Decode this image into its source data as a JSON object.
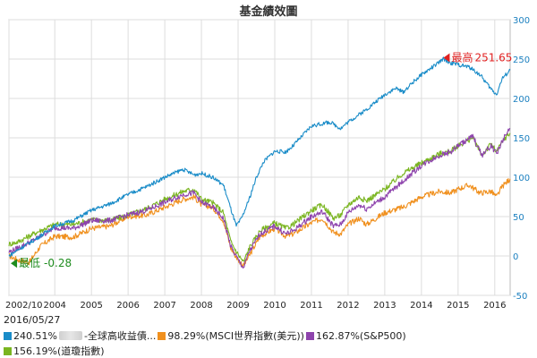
{
  "chart_data": {
    "type": "line",
    "title": "基金績效圖",
    "date": "2016/05/27",
    "x_ticks": [
      "2002/10",
      "2004",
      "2005",
      "2006",
      "2007",
      "2008",
      "2009",
      "2010",
      "2011",
      "2012",
      "2013",
      "2014",
      "2015",
      "2016"
    ],
    "x_tick_positions": [
      2002.75,
      2004,
      2005,
      2006,
      2007,
      2008,
      2009,
      2010,
      2011,
      2012,
      2013,
      2014,
      2015,
      2016
    ],
    "xlim": [
      2002.75,
      2016.42
    ],
    "y_ticks": [
      -50,
      0,
      50,
      100,
      150,
      200,
      250,
      300
    ],
    "ylim": [
      -50,
      300
    ],
    "grid": true,
    "annotations": {
      "max": {
        "label": "最高",
        "value": "251.65",
        "x": 2014.6,
        "y": 251.65
      },
      "min": {
        "label": "最低",
        "value": "-0.28",
        "x": 2002.8,
        "y": -0.28
      }
    },
    "series": [
      {
        "key": "fund",
        "color": "#1a8cc8",
        "return": "240.51%",
        "name": "-全球高收益債...",
        "points": [
          [
            2002.75,
            0
          ],
          [
            2003.0,
            8
          ],
          [
            2003.5,
            22
          ],
          [
            2004.0,
            38
          ],
          [
            2004.5,
            45
          ],
          [
            2005.0,
            58
          ],
          [
            2005.5,
            66
          ],
          [
            2006.0,
            78
          ],
          [
            2006.5,
            88
          ],
          [
            2007.0,
            100
          ],
          [
            2007.3,
            106
          ],
          [
            2007.5,
            110
          ],
          [
            2007.8,
            103
          ],
          [
            2008.0,
            105
          ],
          [
            2008.3,
            100
          ],
          [
            2008.6,
            90
          ],
          [
            2008.8,
            60
          ],
          [
            2008.95,
            38
          ],
          [
            2009.1,
            48
          ],
          [
            2009.3,
            72
          ],
          [
            2009.5,
            100
          ],
          [
            2009.7,
            120
          ],
          [
            2010.0,
            133
          ],
          [
            2010.3,
            132
          ],
          [
            2010.5,
            140
          ],
          [
            2011.0,
            165
          ],
          [
            2011.5,
            170
          ],
          [
            2011.8,
            162
          ],
          [
            2012.0,
            170
          ],
          [
            2012.5,
            186
          ],
          [
            2013.0,
            205
          ],
          [
            2013.3,
            213
          ],
          [
            2013.5,
            208
          ],
          [
            2013.8,
            222
          ],
          [
            2014.0,
            230
          ],
          [
            2014.4,
            243
          ],
          [
            2014.6,
            250
          ],
          [
            2014.8,
            245
          ],
          [
            2015.0,
            243
          ],
          [
            2015.3,
            240
          ],
          [
            2015.6,
            230
          ],
          [
            2015.9,
            212
          ],
          [
            2016.05,
            205
          ],
          [
            2016.2,
            225
          ],
          [
            2016.42,
            236
          ]
        ]
      },
      {
        "key": "msci",
        "color": "#f0901e",
        "return": "98.29%",
        "name": "(MSCI世界指數(美元))",
        "points": [
          [
            2002.75,
            0
          ],
          [
            2003.0,
            -5
          ],
          [
            2003.3,
            -8
          ],
          [
            2003.6,
            12
          ],
          [
            2004.0,
            25
          ],
          [
            2004.5,
            24
          ],
          [
            2005.0,
            35
          ],
          [
            2005.5,
            38
          ],
          [
            2006.0,
            50
          ],
          [
            2006.5,
            52
          ],
          [
            2007.0,
            62
          ],
          [
            2007.5,
            72
          ],
          [
            2007.8,
            75
          ],
          [
            2008.0,
            65
          ],
          [
            2008.3,
            62
          ],
          [
            2008.6,
            45
          ],
          [
            2008.8,
            10
          ],
          [
            2009.0,
            -5
          ],
          [
            2009.15,
            -12
          ],
          [
            2009.3,
            0
          ],
          [
            2009.6,
            25
          ],
          [
            2010.0,
            35
          ],
          [
            2010.3,
            25
          ],
          [
            2010.5,
            28
          ],
          [
            2011.0,
            42
          ],
          [
            2011.3,
            48
          ],
          [
            2011.6,
            30
          ],
          [
            2011.8,
            28
          ],
          [
            2012.0,
            40
          ],
          [
            2012.3,
            48
          ],
          [
            2012.5,
            40
          ],
          [
            2013.0,
            55
          ],
          [
            2013.5,
            62
          ],
          [
            2014.0,
            75
          ],
          [
            2014.5,
            82
          ],
          [
            2014.8,
            80
          ],
          [
            2015.0,
            85
          ],
          [
            2015.3,
            90
          ],
          [
            2015.6,
            80
          ],
          [
            2015.9,
            82
          ],
          [
            2016.05,
            75
          ],
          [
            2016.2,
            88
          ],
          [
            2016.42,
            98
          ]
        ]
      },
      {
        "key": "sp500",
        "color": "#8e44ad",
        "return": "162.87%",
        "name": "(S&P500)",
        "points": [
          [
            2002.75,
            5
          ],
          [
            2003.0,
            10
          ],
          [
            2003.5,
            22
          ],
          [
            2004.0,
            36
          ],
          [
            2004.5,
            35
          ],
          [
            2005.0,
            45
          ],
          [
            2005.5,
            45
          ],
          [
            2006.0,
            52
          ],
          [
            2006.5,
            58
          ],
          [
            2007.0,
            68
          ],
          [
            2007.5,
            78
          ],
          [
            2007.8,
            80
          ],
          [
            2008.0,
            68
          ],
          [
            2008.3,
            62
          ],
          [
            2008.6,
            48
          ],
          [
            2008.8,
            12
          ],
          [
            2009.0,
            -5
          ],
          [
            2009.15,
            -15
          ],
          [
            2009.3,
            5
          ],
          [
            2009.6,
            28
          ],
          [
            2010.0,
            38
          ],
          [
            2010.3,
            28
          ],
          [
            2010.5,
            32
          ],
          [
            2011.0,
            50
          ],
          [
            2011.3,
            56
          ],
          [
            2011.6,
            38
          ],
          [
            2011.8,
            40
          ],
          [
            2012.0,
            55
          ],
          [
            2012.3,
            65
          ],
          [
            2012.5,
            60
          ],
          [
            2013.0,
            75
          ],
          [
            2013.5,
            95
          ],
          [
            2014.0,
            115
          ],
          [
            2014.5,
            128
          ],
          [
            2014.8,
            132
          ],
          [
            2015.0,
            140
          ],
          [
            2015.4,
            152
          ],
          [
            2015.65,
            128
          ],
          [
            2015.9,
            140
          ],
          [
            2016.05,
            130
          ],
          [
            2016.25,
            150
          ],
          [
            2016.42,
            162
          ]
        ]
      },
      {
        "key": "dow",
        "color": "#7ab520",
        "return": "156.19%",
        "name": "(道瓊指數)",
        "points": [
          [
            2002.75,
            15
          ],
          [
            2003.0,
            18
          ],
          [
            2003.5,
            30
          ],
          [
            2004.0,
            40
          ],
          [
            2004.5,
            40
          ],
          [
            2005.0,
            46
          ],
          [
            2005.5,
            45
          ],
          [
            2006.0,
            52
          ],
          [
            2006.5,
            60
          ],
          [
            2007.0,
            72
          ],
          [
            2007.5,
            82
          ],
          [
            2007.8,
            85
          ],
          [
            2008.0,
            72
          ],
          [
            2008.3,
            68
          ],
          [
            2008.6,
            55
          ],
          [
            2008.8,
            18
          ],
          [
            2009.0,
            2
          ],
          [
            2009.15,
            -8
          ],
          [
            2009.3,
            10
          ],
          [
            2009.6,
            32
          ],
          [
            2010.0,
            42
          ],
          [
            2010.3,
            35
          ],
          [
            2010.5,
            40
          ],
          [
            2011.0,
            58
          ],
          [
            2011.3,
            65
          ],
          [
            2011.6,
            48
          ],
          [
            2011.8,
            52
          ],
          [
            2012.0,
            65
          ],
          [
            2012.3,
            75
          ],
          [
            2012.5,
            70
          ],
          [
            2013.0,
            85
          ],
          [
            2013.5,
            105
          ],
          [
            2014.0,
            118
          ],
          [
            2014.5,
            130
          ],
          [
            2014.8,
            133
          ],
          [
            2015.0,
            140
          ],
          [
            2015.4,
            150
          ],
          [
            2015.65,
            128
          ],
          [
            2015.9,
            142
          ],
          [
            2016.05,
            132
          ],
          [
            2016.25,
            148
          ],
          [
            2016.42,
            156
          ]
        ]
      }
    ]
  }
}
